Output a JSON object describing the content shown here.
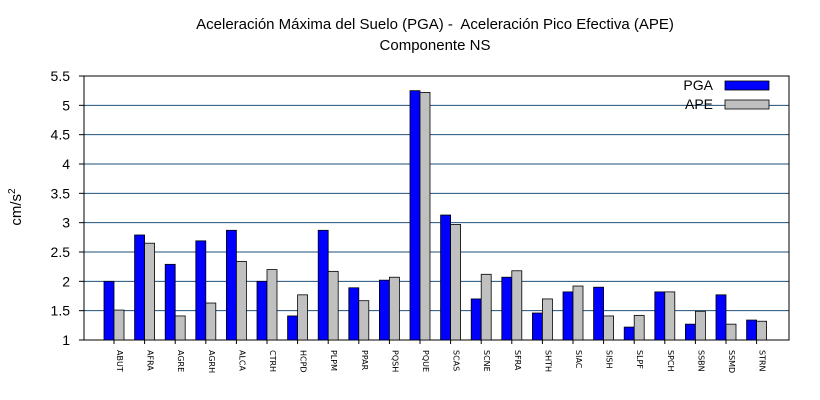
{
  "chart_data": {
    "type": "bar",
    "title_line1": "Aceleración Máxima del Suelo (PGA) -  Aceleración Pico Efectiva (APE)",
    "title_line2": "Componente NS",
    "ylabel_base": "cm/s",
    "ylabel_sup": "2",
    "xlabel": "",
    "ylim": [
      1,
      5.5
    ],
    "yticks": [
      "1",
      "1.5",
      "2",
      "2.5",
      "3",
      "3.5",
      "4",
      "4.5",
      "5",
      "5.5"
    ],
    "grid": "horizontal",
    "legend_position": "top-right",
    "categories": [
      "ABUT",
      "AFRA",
      "AGRE",
      "AGRH",
      "ALCA",
      "CTRH",
      "HCPD",
      "PLPM",
      "PPAR",
      "PQSH",
      "PQUE",
      "SCAS",
      "SCNE",
      "SFRA",
      "SHTH",
      "SIAC",
      "SISH",
      "SLPF",
      "SPCH",
      "SSBN",
      "SSMD",
      "STRN"
    ],
    "series": [
      {
        "name": "PGA",
        "color": "#0000ff",
        "values": [
          2.0,
          2.79,
          2.29,
          2.69,
          2.87,
          2.0,
          1.41,
          2.87,
          1.89,
          2.02,
          5.25,
          3.13,
          1.7,
          2.07,
          1.46,
          1.82,
          1.9,
          1.22,
          1.82,
          1.27,
          1.77,
          1.34
        ]
      },
      {
        "name": "APE",
        "color": "#c0c0c0",
        "values": [
          1.51,
          2.65,
          1.41,
          1.63,
          2.34,
          2.2,
          1.77,
          2.17,
          1.67,
          2.07,
          5.22,
          2.97,
          2.12,
          2.18,
          1.7,
          1.92,
          1.41,
          1.42,
          1.82,
          1.49,
          1.27,
          1.32
        ]
      }
    ]
  }
}
